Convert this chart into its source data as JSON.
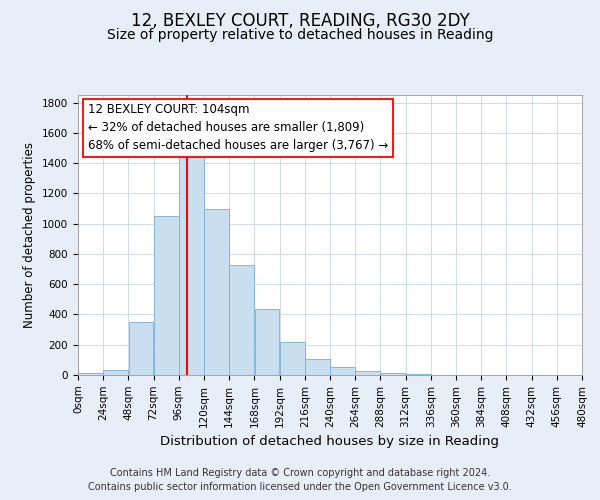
{
  "title": "12, BEXLEY COURT, READING, RG30 2DY",
  "subtitle": "Size of property relative to detached houses in Reading",
  "xlabel": "Distribution of detached houses by size in Reading",
  "ylabel": "Number of detached properties",
  "footnote1": "Contains HM Land Registry data © Crown copyright and database right 2024.",
  "footnote2": "Contains public sector information licensed under the Open Government Licence v3.0.",
  "bin_edges": [
    0,
    24,
    48,
    72,
    96,
    120,
    144,
    168,
    192,
    216,
    240,
    264,
    288,
    312,
    336,
    360,
    384,
    408,
    432,
    456,
    480
  ],
  "bar_heights": [
    15,
    30,
    350,
    1050,
    1440,
    1100,
    725,
    435,
    220,
    105,
    55,
    25,
    12,
    5,
    3,
    2,
    1,
    1,
    0,
    0
  ],
  "bar_color": "#c9dff0",
  "bar_edge_color": "#7bafd4",
  "vline_x": 104,
  "vline_color": "red",
  "ylim": [
    0,
    1850
  ],
  "yticks": [
    0,
    200,
    400,
    600,
    800,
    1000,
    1200,
    1400,
    1600,
    1800
  ],
  "annotation_title": "12 BEXLEY COURT: 104sqm",
  "annotation_line1": "← 32% of detached houses are smaller (1,809)",
  "annotation_line2": "68% of semi-detached houses are larger (3,767) →",
  "bg_color": "#e8eef8",
  "plot_bg_color": "#ffffff",
  "grid_color": "#c8d4e8",
  "title_fontsize": 12,
  "subtitle_fontsize": 10,
  "xlabel_fontsize": 9.5,
  "ylabel_fontsize": 8.5,
  "tick_fontsize": 7.5,
  "annot_title_fontsize": 9,
  "annot_body_fontsize": 8.5,
  "footnote_fontsize": 7
}
